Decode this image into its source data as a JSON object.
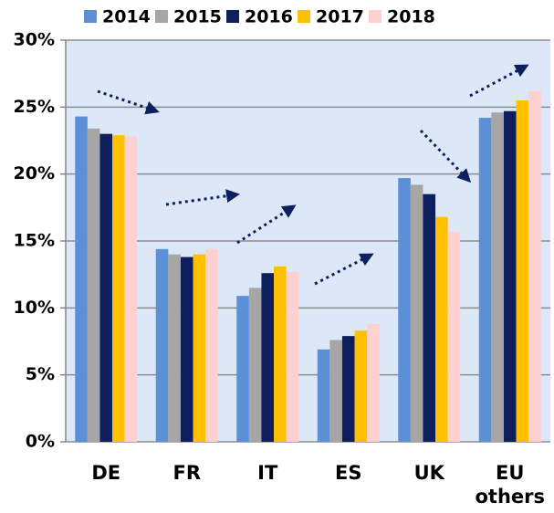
{
  "chart_data": {
    "type": "bar",
    "categories": [
      "DE",
      "FR",
      "IT",
      "ES",
      "UK",
      "EU others"
    ],
    "series": [
      {
        "name": "2014",
        "color": "#5b8fd6",
        "values": [
          24.3,
          14.4,
          10.9,
          6.9,
          19.7,
          24.2
        ]
      },
      {
        "name": "2015",
        "color": "#a6a6a6",
        "values": [
          23.4,
          14.0,
          11.5,
          7.6,
          19.2,
          24.6
        ]
      },
      {
        "name": "2016",
        "color": "#0d1f5c",
        "values": [
          23.0,
          13.8,
          12.6,
          7.9,
          18.5,
          24.7
        ]
      },
      {
        "name": "2017",
        "color": "#ffc000",
        "values": [
          22.9,
          14.0,
          13.1,
          8.3,
          16.8,
          25.5
        ]
      },
      {
        "name": "2018",
        "color": "#ffd0d0",
        "values": [
          22.8,
          14.4,
          12.7,
          8.8,
          15.7,
          26.2
        ]
      }
    ],
    "ylim": [
      0,
      30
    ],
    "yticks": [
      {
        "value": 0,
        "label": "0%"
      },
      {
        "value": 5,
        "label": "5%"
      },
      {
        "value": 10,
        "label": "10%"
      },
      {
        "value": 15,
        "label": "15%"
      },
      {
        "value": 20,
        "label": "20%"
      },
      {
        "value": 25,
        "label": "25%"
      },
      {
        "value": 30,
        "label": "30%"
      }
    ],
    "grid": true
  }
}
